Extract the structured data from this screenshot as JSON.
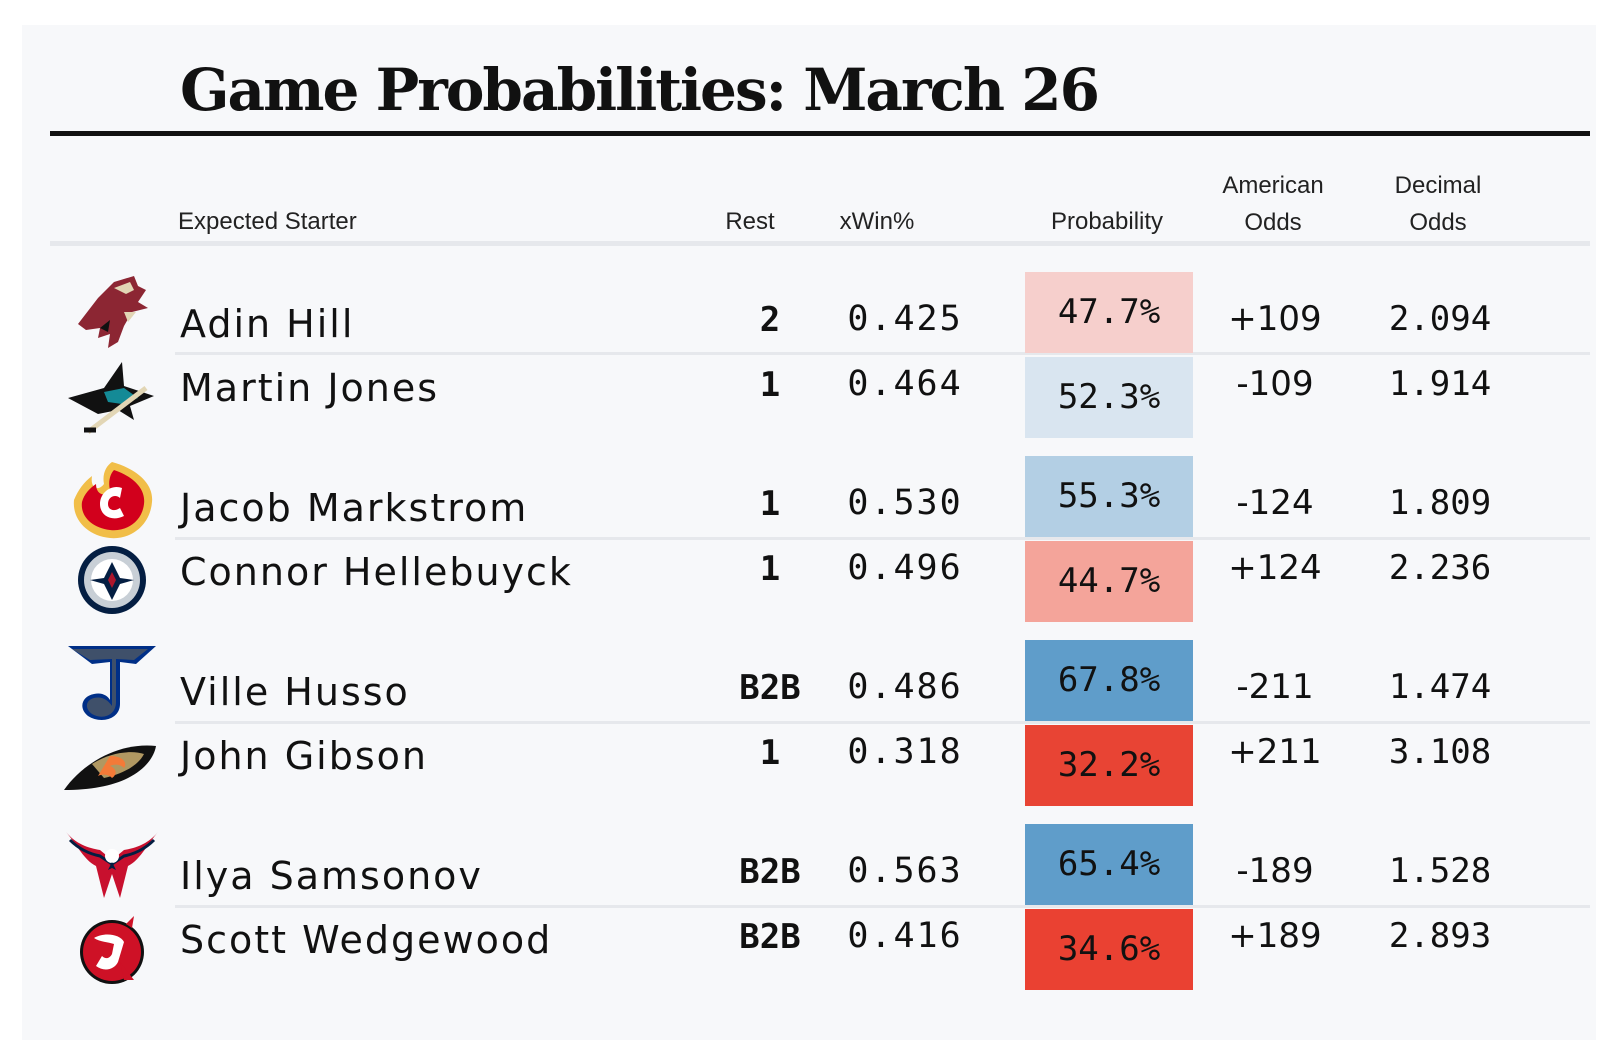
{
  "title": "Game Probabilities: March 26",
  "headers": {
    "starter": "Expected Starter",
    "rest": "Rest",
    "xwin": "xWin%",
    "probability": "Probability",
    "american_1": "American",
    "american_2": "Odds",
    "decimal_1": "Decimal",
    "decimal_2": "Odds"
  },
  "games": [
    {
      "teams": [
        {
          "logo_icon": "coyotes-logo-icon",
          "starter": "Adin Hill",
          "rest": "2",
          "xwin": "0.425",
          "probability": "47.7%",
          "prob_color": "#f6cfcc",
          "american": "+109",
          "decimal": "2.094"
        },
        {
          "logo_icon": "sharks-logo-icon",
          "starter": "Martin Jones",
          "rest": "1",
          "xwin": "0.464",
          "probability": "52.3%",
          "prob_color": "#d9e5f0",
          "american": "-109",
          "decimal": "1.914"
        }
      ]
    },
    {
      "teams": [
        {
          "logo_icon": "flames-logo-icon",
          "starter": "Jacob Markstrom",
          "rest": "1",
          "xwin": "0.530",
          "probability": "55.3%",
          "prob_color": "#b3cfe4",
          "american": "-124",
          "decimal": "1.809"
        },
        {
          "logo_icon": "jets-logo-icon",
          "starter": "Connor Hellebuyck",
          "rest": "1",
          "xwin": "0.496",
          "probability": "44.7%",
          "prob_color": "#f4a49a",
          "american": "+124",
          "decimal": "2.236"
        }
      ]
    },
    {
      "teams": [
        {
          "logo_icon": "blues-logo-icon",
          "starter": "Ville Husso",
          "rest": "B2B",
          "xwin": "0.486",
          "probability": "67.8%",
          "prob_color": "#5f9dca",
          "american": "-211",
          "decimal": "1.474"
        },
        {
          "logo_icon": "ducks-logo-icon",
          "starter": "John Gibson",
          "rest": "1",
          "xwin": "0.318",
          "probability": "32.2%",
          "prob_color": "#e84434",
          "american": "+211",
          "decimal": "3.108"
        }
      ]
    },
    {
      "teams": [
        {
          "logo_icon": "capitals-logo-icon",
          "starter": "Ilya Samsonov",
          "rest": "B2B",
          "xwin": "0.563",
          "probability": "65.4%",
          "prob_color": "#5f9dca",
          "american": "-189",
          "decimal": "1.528"
        },
        {
          "logo_icon": "devils-logo-icon",
          "starter": "Scott Wedgewood",
          "rest": "B2B",
          "xwin": "0.416",
          "probability": "34.6%",
          "prob_color": "#ea4132",
          "american": "+189",
          "decimal": "2.893"
        }
      ]
    }
  ]
}
